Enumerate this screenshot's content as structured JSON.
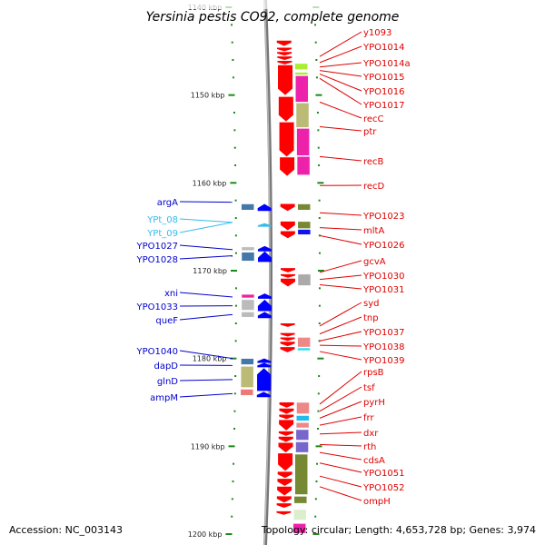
{
  "title": "Yersinia pestis CO92, complete genome",
  "footer": {
    "accession": "Accession: NC_003143",
    "summary": "Topology: circular; Length: 4,653,728 bp; Genes: 3,974"
  },
  "axis": {
    "unit": "kbp",
    "range_kbp": [
      1140,
      1200
    ],
    "major_ticks": [
      {
        "kbp": 1140,
        "label": "1140 kbp"
      },
      {
        "kbp": 1150,
        "label": "1150 kbp"
      },
      {
        "kbp": 1160,
        "label": "1160 kbp"
      },
      {
        "kbp": 1170,
        "label": "1170 kbp"
      },
      {
        "kbp": 1180,
        "label": "1180 kbp"
      },
      {
        "kbp": 1190,
        "label": "1190 kbp"
      },
      {
        "kbp": 1200,
        "label": "1200 kbp"
      }
    ],
    "minor_tick_step_kbp": 2
  },
  "colors": {
    "reverse_strand_gene": "#ff0000",
    "forward_strand_gene": "#0000ff",
    "rna_gene": "#33bbee",
    "label_reverse": "#e00000",
    "label_forward": "#0000cc",
    "label_rna": "#33bbee",
    "tick": "#1a8a1a",
    "backbone": "#888888"
  },
  "right_genes": [
    {
      "name": "y1093",
      "kbp": 1145.6
    },
    {
      "name": "YPO1014",
      "kbp": 1146.3
    },
    {
      "name": "YPO1014a",
      "kbp": 1146.8
    },
    {
      "name": "YPO1015",
      "kbp": 1147.2
    },
    {
      "name": "YPO1016",
      "kbp": 1147.6
    },
    {
      "name": "YPO1017",
      "kbp": 1148.1
    },
    {
      "name": "recC",
      "kbp": 1150.8
    },
    {
      "name": "ptr",
      "kbp": 1153.6
    },
    {
      "name": "recB",
      "kbp": 1157.0
    },
    {
      "name": "recD",
      "kbp": 1160.3
    },
    {
      "name": "YPO1023",
      "kbp": 1163.4
    },
    {
      "name": "mltA",
      "kbp": 1165.1
    },
    {
      "name": "YPO1026",
      "kbp": 1166.0
    },
    {
      "name": "gcvA",
      "kbp": 1170.2
    },
    {
      "name": "YPO1030",
      "kbp": 1171.0
    },
    {
      "name": "YPO1031",
      "kbp": 1171.6
    },
    {
      "name": "syd",
      "kbp": 1176.3
    },
    {
      "name": "tnp",
      "kbp": 1177.2
    },
    {
      "name": "YPO1037",
      "kbp": 1178.0
    },
    {
      "name": "YPO1038",
      "kbp": 1178.5
    },
    {
      "name": "YPO1039",
      "kbp": 1179.2
    },
    {
      "name": "rpsB",
      "kbp": 1185.2
    },
    {
      "name": "tsf",
      "kbp": 1186.0
    },
    {
      "name": "pyrH",
      "kbp": 1186.8
    },
    {
      "name": "frr",
      "kbp": 1187.6
    },
    {
      "name": "dxr",
      "kbp": 1188.6
    },
    {
      "name": "rth",
      "kbp": 1189.8
    },
    {
      "name": "cdsA",
      "kbp": 1190.7
    },
    {
      "name": "YPO1051",
      "kbp": 1191.9
    },
    {
      "name": "YPO1052",
      "kbp": 1193.4
    },
    {
      "name": "ompH",
      "kbp": 1194.6
    }
  ],
  "left_genes": [
    {
      "name": "argA",
      "kbp": 1162.2,
      "kind": "forward"
    },
    {
      "name": "YPt_08",
      "kbp": 1164.5,
      "kind": "rna"
    },
    {
      "name": "YPt_09",
      "kbp": 1164.5,
      "kind": "rna"
    },
    {
      "name": "YPO1027",
      "kbp": 1167.6,
      "kind": "forward"
    },
    {
      "name": "YPO1028",
      "kbp": 1168.3,
      "kind": "forward"
    },
    {
      "name": "xni",
      "kbp": 1173.0,
      "kind": "forward"
    },
    {
      "name": "YPO1033",
      "kbp": 1174.0,
      "kind": "forward"
    },
    {
      "name": "queF",
      "kbp": 1175.0,
      "kind": "forward"
    },
    {
      "name": "YPO1040",
      "kbp": 1180.0,
      "kind": "forward"
    },
    {
      "name": "dapD",
      "kbp": 1180.8,
      "kind": "forward"
    },
    {
      "name": "glnD",
      "kbp": 1182.4,
      "kind": "forward"
    },
    {
      "name": "ampM",
      "kbp": 1184.0,
      "kind": "forward"
    }
  ],
  "reverse_strand_blocks": [
    {
      "start": 1143.8,
      "end": 1144.4
    },
    {
      "start": 1144.6,
      "end": 1145.0
    },
    {
      "start": 1145.1,
      "end": 1145.5
    },
    {
      "start": 1145.6,
      "end": 1146.0
    },
    {
      "start": 1146.1,
      "end": 1146.5
    },
    {
      "start": 1146.6,
      "end": 1150.0
    },
    {
      "start": 1150.2,
      "end": 1153.0
    },
    {
      "start": 1153.1,
      "end": 1157.0
    },
    {
      "start": 1157.1,
      "end": 1159.2
    },
    {
      "start": 1162.4,
      "end": 1163.2
    },
    {
      "start": 1164.4,
      "end": 1165.4
    },
    {
      "start": 1165.5,
      "end": 1166.3
    },
    {
      "start": 1169.7,
      "end": 1170.2
    },
    {
      "start": 1170.4,
      "end": 1170.8
    },
    {
      "start": 1170.9,
      "end": 1171.8
    },
    {
      "start": 1176.0,
      "end": 1176.4
    },
    {
      "start": 1177.1,
      "end": 1177.5
    },
    {
      "start": 1177.6,
      "end": 1178.0
    },
    {
      "start": 1178.1,
      "end": 1178.6
    },
    {
      "start": 1178.7,
      "end": 1179.3
    },
    {
      "start": 1185.0,
      "end": 1185.6
    },
    {
      "start": 1185.7,
      "end": 1186.3
    },
    {
      "start": 1186.4,
      "end": 1186.9
    },
    {
      "start": 1187.0,
      "end": 1188.2
    },
    {
      "start": 1188.3,
      "end": 1188.8
    },
    {
      "start": 1188.9,
      "end": 1189.5
    },
    {
      "start": 1189.6,
      "end": 1190.7
    },
    {
      "start": 1190.8,
      "end": 1192.8
    },
    {
      "start": 1192.9,
      "end": 1193.6
    },
    {
      "start": 1193.7,
      "end": 1194.5
    },
    {
      "start": 1194.6,
      "end": 1195.6
    },
    {
      "start": 1195.7,
      "end": 1196.4
    },
    {
      "start": 1196.5,
      "end": 1197.0
    },
    {
      "start": 1197.4,
      "end": 1197.8
    }
  ],
  "forward_strand_blocks": [
    {
      "start": 1162.4,
      "end": 1163.2,
      "kind": "forward"
    },
    {
      "start": 1164.6,
      "end": 1165.0,
      "kind": "rna"
    },
    {
      "start": 1167.2,
      "end": 1167.8,
      "kind": "forward"
    },
    {
      "start": 1167.8,
      "end": 1169.0,
      "kind": "forward"
    },
    {
      "start": 1172.6,
      "end": 1173.2,
      "kind": "forward"
    },
    {
      "start": 1173.3,
      "end": 1174.6,
      "kind": "forward"
    },
    {
      "start": 1174.7,
      "end": 1175.4,
      "kind": "forward"
    },
    {
      "start": 1180.0,
      "end": 1180.5,
      "kind": "forward"
    },
    {
      "start": 1180.5,
      "end": 1181.0,
      "kind": "forward"
    },
    {
      "start": 1181.1,
      "end": 1183.7,
      "kind": "forward"
    },
    {
      "start": 1183.8,
      "end": 1184.4,
      "kind": "forward"
    }
  ],
  "function_blocks_right": [
    {
      "start": 1146.4,
      "end": 1147.2,
      "color": "#aaee33"
    },
    {
      "start": 1147.4,
      "end": 1147.8,
      "color": "#aaee33"
    },
    {
      "start": 1147.8,
      "end": 1150.9,
      "color": "#ee22aa"
    },
    {
      "start": 1150.9,
      "end": 1153.8,
      "color": "#bbbb77"
    },
    {
      "start": 1153.8,
      "end": 1157.0,
      "color": "#ee22aa"
    },
    {
      "start": 1157.0,
      "end": 1159.2,
      "color": "#ee22aa"
    },
    {
      "start": 1162.4,
      "end": 1163.2,
      "color": "#778833"
    },
    {
      "start": 1164.4,
      "end": 1165.3,
      "color": "#778833"
    },
    {
      "start": 1165.3,
      "end": 1166.0,
      "color": "#1111ee"
    },
    {
      "start": 1170.4,
      "end": 1171.8,
      "color": "#aaaaaa"
    },
    {
      "start": 1177.6,
      "end": 1178.8,
      "color": "#ee8888"
    },
    {
      "start": 1178.8,
      "end": 1179.2,
      "color": "#22ddee"
    },
    {
      "start": 1185.0,
      "end": 1186.4,
      "color": "#ee8888"
    },
    {
      "start": 1186.5,
      "end": 1187.2,
      "color": "#22bbee"
    },
    {
      "start": 1187.3,
      "end": 1188.0,
      "color": "#ee8888"
    },
    {
      "start": 1188.1,
      "end": 1189.4,
      "color": "#7766cc"
    },
    {
      "start": 1189.5,
      "end": 1190.8,
      "color": "#7766cc"
    },
    {
      "start": 1190.9,
      "end": 1195.6,
      "color": "#778833"
    },
    {
      "start": 1195.7,
      "end": 1196.6,
      "color": "#778833"
    },
    {
      "start": 1197.2,
      "end": 1198.5,
      "color": "#ddeecc"
    },
    {
      "start": 1198.8,
      "end": 1200.0,
      "color": "#ee22aa"
    }
  ],
  "function_blocks_left": [
    {
      "start": 1162.4,
      "end": 1163.2,
      "color": "#4477aa"
    },
    {
      "start": 1167.3,
      "end": 1167.8,
      "color": "#bbbbbb"
    },
    {
      "start": 1167.9,
      "end": 1169.0,
      "color": "#4477aa"
    },
    {
      "start": 1172.7,
      "end": 1173.2,
      "color": "#ee2299"
    },
    {
      "start": 1173.3,
      "end": 1174.6,
      "color": "#bbbbbb"
    },
    {
      "start": 1174.7,
      "end": 1175.4,
      "color": "#bbbbbb"
    },
    {
      "start": 1180.0,
      "end": 1180.8,
      "color": "#4477aa"
    },
    {
      "start": 1180.9,
      "end": 1183.4,
      "color": "#bbbb77"
    },
    {
      "start": 1183.5,
      "end": 1184.3,
      "color": "#ee7777"
    }
  ]
}
